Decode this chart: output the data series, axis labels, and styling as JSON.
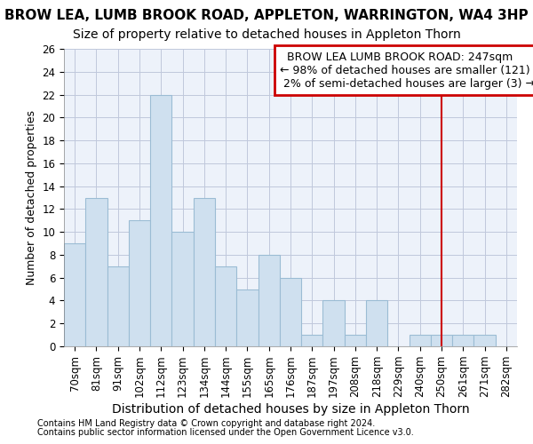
{
  "title": "BROW LEA, LUMB BROOK ROAD, APPLETON, WARRINGTON, WA4 3HP",
  "subtitle": "Size of property relative to detached houses in Appleton Thorn",
  "xlabel": "Distribution of detached houses by size in Appleton Thorn",
  "ylabel": "Number of detached properties",
  "footnote1": "Contains HM Land Registry data © Crown copyright and database right 2024.",
  "footnote2": "Contains public sector information licensed under the Open Government Licence v3.0.",
  "categories": [
    "70sqm",
    "81sqm",
    "91sqm",
    "102sqm",
    "112sqm",
    "123sqm",
    "134sqm",
    "144sqm",
    "155sqm",
    "165sqm",
    "176sqm",
    "187sqm",
    "197sqm",
    "208sqm",
    "218sqm",
    "229sqm",
    "240sqm",
    "250sqm",
    "261sqm",
    "271sqm",
    "282sqm"
  ],
  "values": [
    9,
    13,
    7,
    11,
    22,
    10,
    13,
    7,
    5,
    8,
    6,
    1,
    4,
    1,
    4,
    0,
    1,
    1,
    1,
    1,
    0
  ],
  "bar_color": "#cfe0ef",
  "bar_edge_color": "#9bbcd4",
  "grid_color": "#c0c8dc",
  "background_color": "#ffffff",
  "plot_bg_color": "#edf2fa",
  "vline_x_index": 17,
  "vline_color": "#cc0000",
  "annotation_text": "  BROW LEA LUMB BROOK ROAD: 247sqm  \n← 98% of detached houses are smaller (121)\n 2% of semi-detached houses are larger (3) →",
  "annotation_box_color": "#cc0000",
  "annotation_text_color": "#000000",
  "annotation_bg": "#ffffff",
  "ylim": [
    0,
    26
  ],
  "yticks": [
    0,
    2,
    4,
    6,
    8,
    10,
    12,
    14,
    16,
    18,
    20,
    22,
    24,
    26
  ],
  "title_fontsize": 11,
  "subtitle_fontsize": 10,
  "xlabel_fontsize": 10,
  "ylabel_fontsize": 9,
  "tick_fontsize": 8.5,
  "annotation_fontsize": 9
}
